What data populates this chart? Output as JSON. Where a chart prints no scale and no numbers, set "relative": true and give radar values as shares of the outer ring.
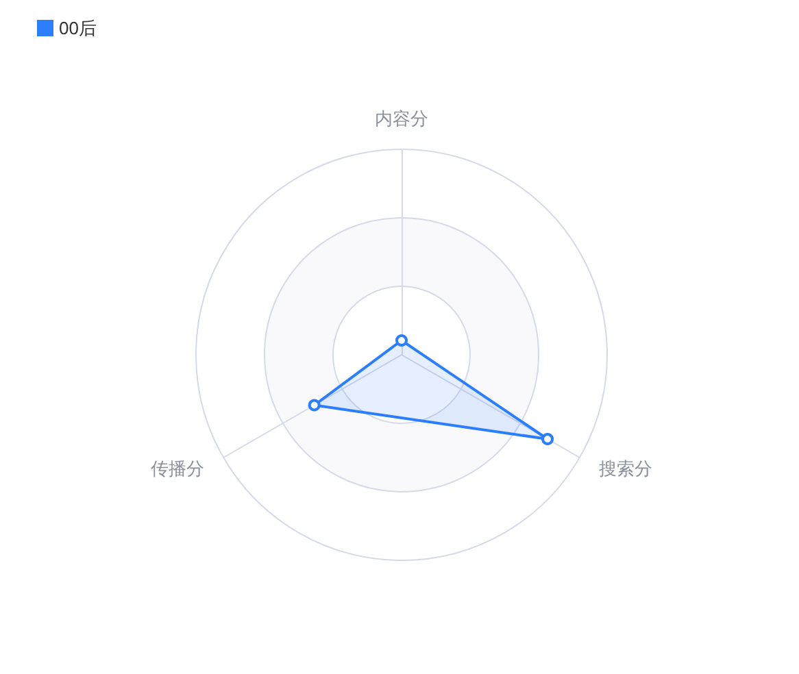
{
  "chart_data": {
    "type": "radar",
    "categories": [
      "内容分",
      "搜索分",
      "传播分"
    ],
    "relative": true,
    "series": [
      {
        "name": "00后",
        "color": "#2b7fff",
        "values": [
          0.07,
          0.82,
          0.49
        ]
      }
    ],
    "legend": "top left",
    "marker": "circle",
    "grid": true
  }
}
